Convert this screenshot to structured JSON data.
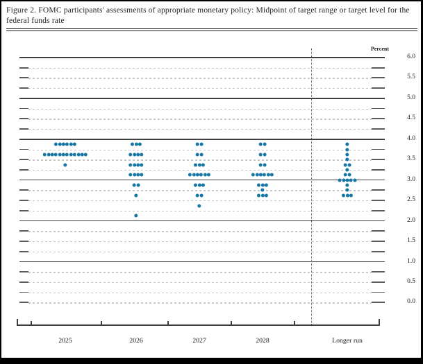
{
  "chart_data": {
    "type": "scatter",
    "subtype": "fomc-dot-plot",
    "title": "Figure 2. FOMC participants' assessments of appropriate monetary policy: Midpoint of target range or target level for the federal funds rate",
    "ylabel": "Percent",
    "xlabel": "",
    "ylim": [
      0.0,
      6.0
    ],
    "gridline_step": 0.25,
    "solid_gridlines_at": [
      1.0,
      2.0,
      3.0,
      4.0,
      5.0,
      6.0
    ],
    "y_tick_labels": [
      "6.0",
      "5.5",
      "5.0",
      "4.5",
      "4.0",
      "3.5",
      "3.0",
      "2.5",
      "2.0",
      "1.5",
      "1.0",
      "0.5",
      "0.0"
    ],
    "categories": [
      "2025",
      "2026",
      "2027",
      "2028",
      "Longer run"
    ],
    "legend_position": "none",
    "grid": true,
    "dot_color": "#1577a5",
    "series": [
      {
        "category": "2025",
        "dots": [
          {
            "rate": 3.875,
            "count": 6
          },
          {
            "rate": 3.625,
            "count": 12
          },
          {
            "rate": 3.375,
            "count": 1
          }
        ]
      },
      {
        "category": "2026",
        "dots": [
          {
            "rate": 3.875,
            "count": 3
          },
          {
            "rate": 3.625,
            "count": 4
          },
          {
            "rate": 3.375,
            "count": 4
          },
          {
            "rate": 3.125,
            "count": 4
          },
          {
            "rate": 2.875,
            "count": 2
          },
          {
            "rate": 2.625,
            "count": 1
          },
          {
            "rate": 2.125,
            "count": 1
          }
        ]
      },
      {
        "category": "2027",
        "dots": [
          {
            "rate": 3.875,
            "count": 2
          },
          {
            "rate": 3.625,
            "count": 2
          },
          {
            "rate": 3.375,
            "count": 3
          },
          {
            "rate": 3.125,
            "count": 6
          },
          {
            "rate": 2.875,
            "count": 3
          },
          {
            "rate": 2.625,
            "count": 2
          },
          {
            "rate": 2.375,
            "count": 1
          }
        ]
      },
      {
        "category": "2028",
        "dots": [
          {
            "rate": 3.875,
            "count": 2
          },
          {
            "rate": 3.625,
            "count": 2
          },
          {
            "rate": 3.375,
            "count": 2
          },
          {
            "rate": 3.125,
            "count": 6
          },
          {
            "rate": 2.875,
            "count": 3
          },
          {
            "rate": 2.75,
            "count": 1
          },
          {
            "rate": 2.625,
            "count": 3
          }
        ]
      },
      {
        "category": "Longer run",
        "dots": [
          {
            "rate": 3.875,
            "count": 1
          },
          {
            "rate": 3.75,
            "count": 1
          },
          {
            "rate": 3.625,
            "count": 1
          },
          {
            "rate": 3.5,
            "count": 1
          },
          {
            "rate": 3.375,
            "count": 2
          },
          {
            "rate": 3.25,
            "count": 1
          },
          {
            "rate": 3.125,
            "count": 2
          },
          {
            "rate": 3.0,
            "count": 5
          },
          {
            "rate": 2.875,
            "count": 1
          },
          {
            "rate": 2.75,
            "count": 1
          },
          {
            "rate": 2.625,
            "count": 3
          }
        ]
      }
    ]
  }
}
